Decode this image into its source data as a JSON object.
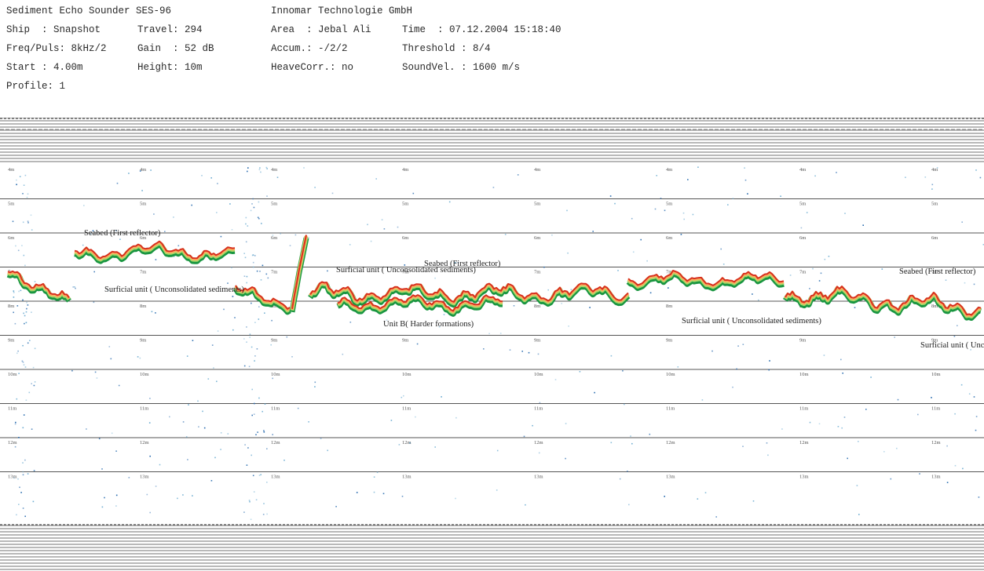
{
  "header": {
    "device": "Sediment Echo Sounder SES-96",
    "company": "Innomar Technologie GmbH",
    "ship": "Ship  : Snapshot",
    "travel": "Travel: 294",
    "area": "Area  : Jebal Ali",
    "time": "Time  : 07.12.2004 15:18:40",
    "freq": "Freq/Puls: 8kHz/2",
    "gain": "Gain  : 52 dB",
    "accum": "Accum.: -/2/2",
    "threshold": "Threshold : 8/4",
    "start": "Start : 4.00m",
    "height": "Height: 10m",
    "heave": "HeaveCorr.: no",
    "soundvel": "SoundVel. : 1600 m/s",
    "profile": "Profile: 1"
  },
  "depth_ticks": [
    "4m",
    "5m",
    "6m",
    "7m",
    "8m",
    "9m",
    "10m",
    "11m",
    "12m",
    "13m"
  ],
  "annotations": {
    "seabed_left": "Seabed (First reflector)",
    "surficial_left": "Surficial unit ( Unconsolidated sediments)",
    "surficial_mid": "Surficial unit ( Unconsolidated sediments)",
    "seabed_mid": "Seabed (First reflector)",
    "unit_b": "Unit B( Harder formations)",
    "surficial_right": "Surficial unit ( Unconsolidated sediments)",
    "seabed_right": "Seabed (First reflector)",
    "surficial_far_right": "Surficial unit ( Unconsolidated"
  },
  "colors": {
    "reflector_strong": "#d7301f",
    "reflector_mid": "#fdae61",
    "reflector_weak": "#a6d96a",
    "reflector_edge": "#1a9641",
    "noise": "#2166ac"
  }
}
